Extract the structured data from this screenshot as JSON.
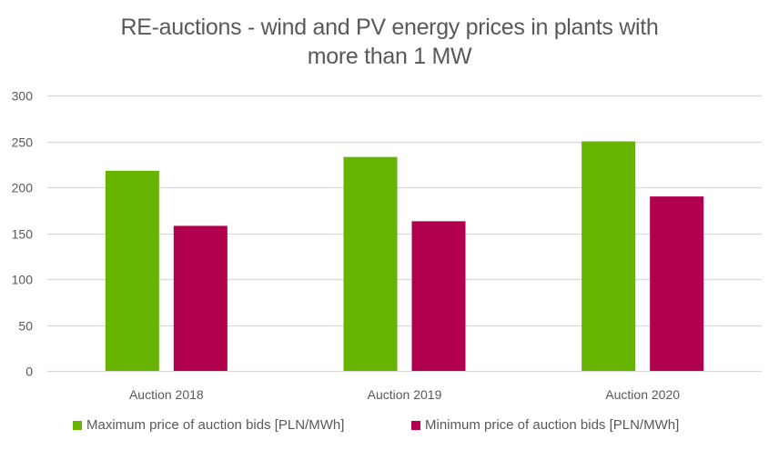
{
  "chart_data": {
    "type": "bar",
    "title_lines": [
      "RE-auctions - wind and PV energy prices in plants with",
      "more than 1 MW"
    ],
    "title": "RE-auctions - wind and PV energy prices in plants with more than 1 MW",
    "xlabel": "",
    "ylabel": "",
    "categories": [
      "Auction 2018",
      "Auction 2019",
      "Auction 2020"
    ],
    "series": [
      {
        "name": "Maximum price of auction bids [PLN/MWh]",
        "color": "#66B300",
        "values": [
          218,
          233,
          250
        ]
      },
      {
        "name": "Minimum price of auction bids [PLN/MWh]",
        "color": "#B0004E",
        "values": [
          158,
          163,
          190
        ]
      }
    ],
    "ylim": [
      0,
      300
    ],
    "yticks": [
      0,
      50,
      100,
      150,
      200,
      250,
      300
    ],
    "grid": true,
    "grid_color": "#D9D9D9",
    "legend_position": "bottom"
  }
}
